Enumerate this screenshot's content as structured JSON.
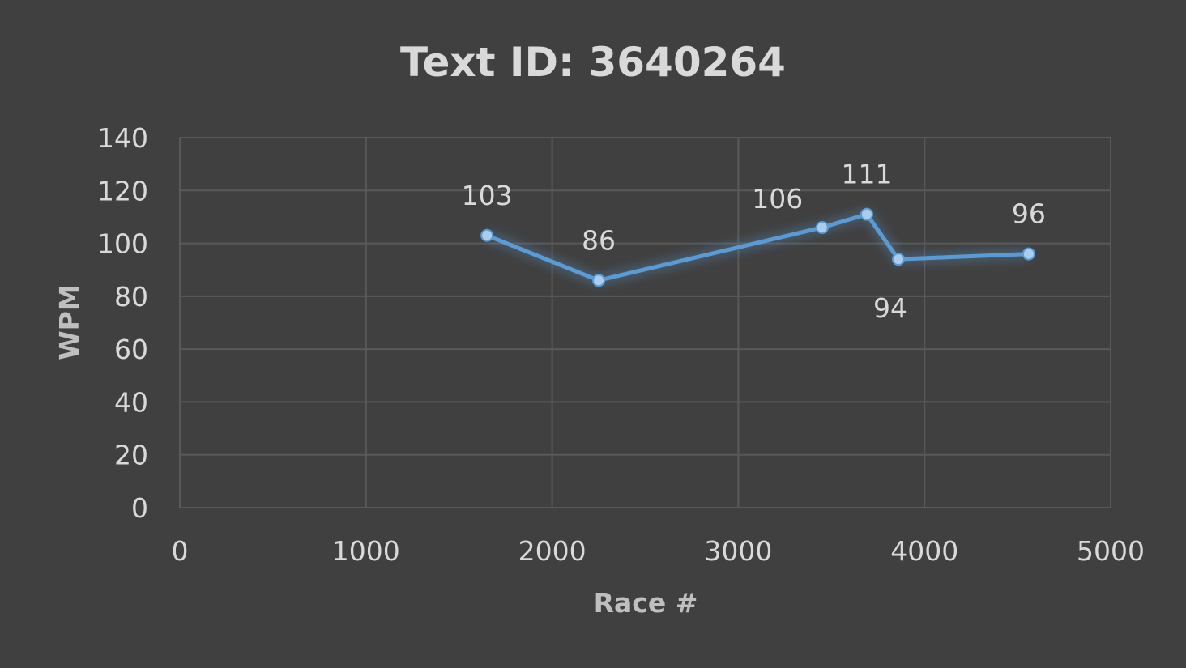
{
  "chart_data": {
    "type": "scatter",
    "title": "Text ID: 3640264",
    "xlabel": "Race #",
    "ylabel": "WPM",
    "xlim": [
      0,
      5000
    ],
    "ylim": [
      0,
      140
    ],
    "x_ticks": [
      0,
      1000,
      2000,
      3000,
      4000,
      5000
    ],
    "y_ticks": [
      0,
      20,
      40,
      60,
      80,
      100,
      120,
      140
    ],
    "grid": true,
    "legend": "none",
    "line_color": "#5b9bd5",
    "series": [
      {
        "x": [
          1650,
          2250,
          3450,
          3690,
          3860,
          4560
        ],
        "y": [
          103,
          86,
          106,
          111,
          94,
          96
        ],
        "labels": [
          "103",
          "86",
          "106",
          "111",
          "94",
          "96"
        ],
        "label_positions": [
          "above",
          "above",
          "left-above",
          "above",
          "below",
          "above"
        ]
      }
    ]
  }
}
